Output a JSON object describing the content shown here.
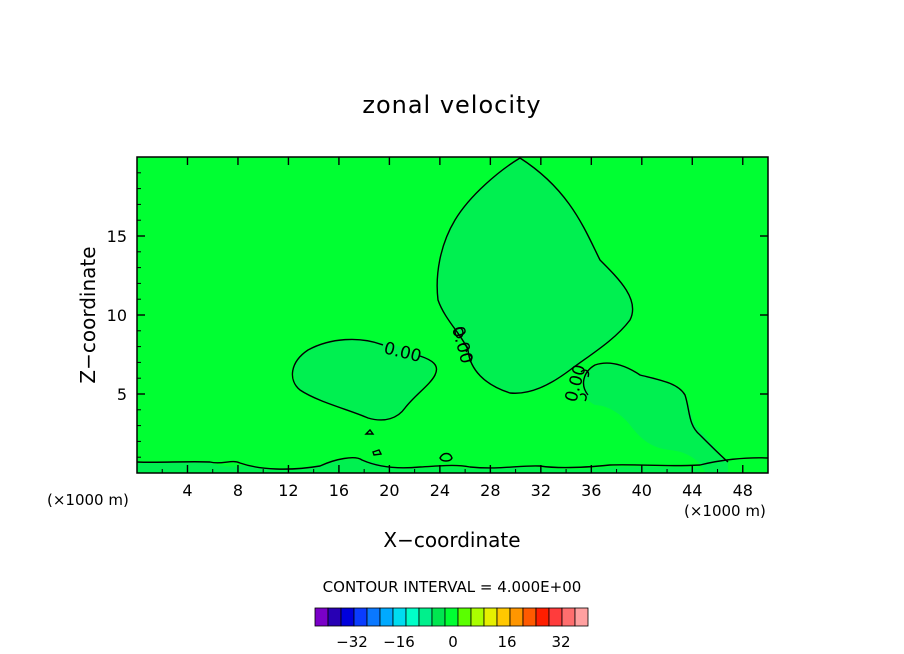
{
  "chart_data": {
    "type": "contour",
    "title": "zonal velocity",
    "xlabel": "X−coordinate",
    "ylabel": "Z−coordinate",
    "x_unit_left": "(×1000 m)",
    "x_unit_right": "(×1000 m)",
    "xlim": [
      0,
      50
    ],
    "ylim": [
      0,
      20
    ],
    "x_ticks": [
      4,
      8,
      12,
      16,
      20,
      24,
      28,
      32,
      36,
      40,
      44,
      48
    ],
    "y_ticks": [
      5,
      10,
      15
    ],
    "contour_labels": [
      "0.00",
      "0.00",
      "0.00"
    ],
    "contour_interval_text": "CONTOUR INTERVAL = 4.000E+00",
    "colorbar": {
      "colors": [
        "#7a00c8",
        "#2800b4",
        "#0000dc",
        "#0a3cff",
        "#0a78ff",
        "#00aaff",
        "#00dcf0",
        "#00ffc8",
        "#00f08c",
        "#00e650",
        "#00ff32",
        "#5aff00",
        "#aaff00",
        "#e6f000",
        "#ffc800",
        "#ff9600",
        "#ff5a00",
        "#ff1e00",
        "#ff3c3c",
        "#ff6e6e",
        "#ffa0a0"
      ],
      "tick_labels": [
        "−32",
        "−16",
        "0",
        "16",
        "32"
      ]
    },
    "background_color": "#00ff32",
    "region_color": "#00f050"
  }
}
